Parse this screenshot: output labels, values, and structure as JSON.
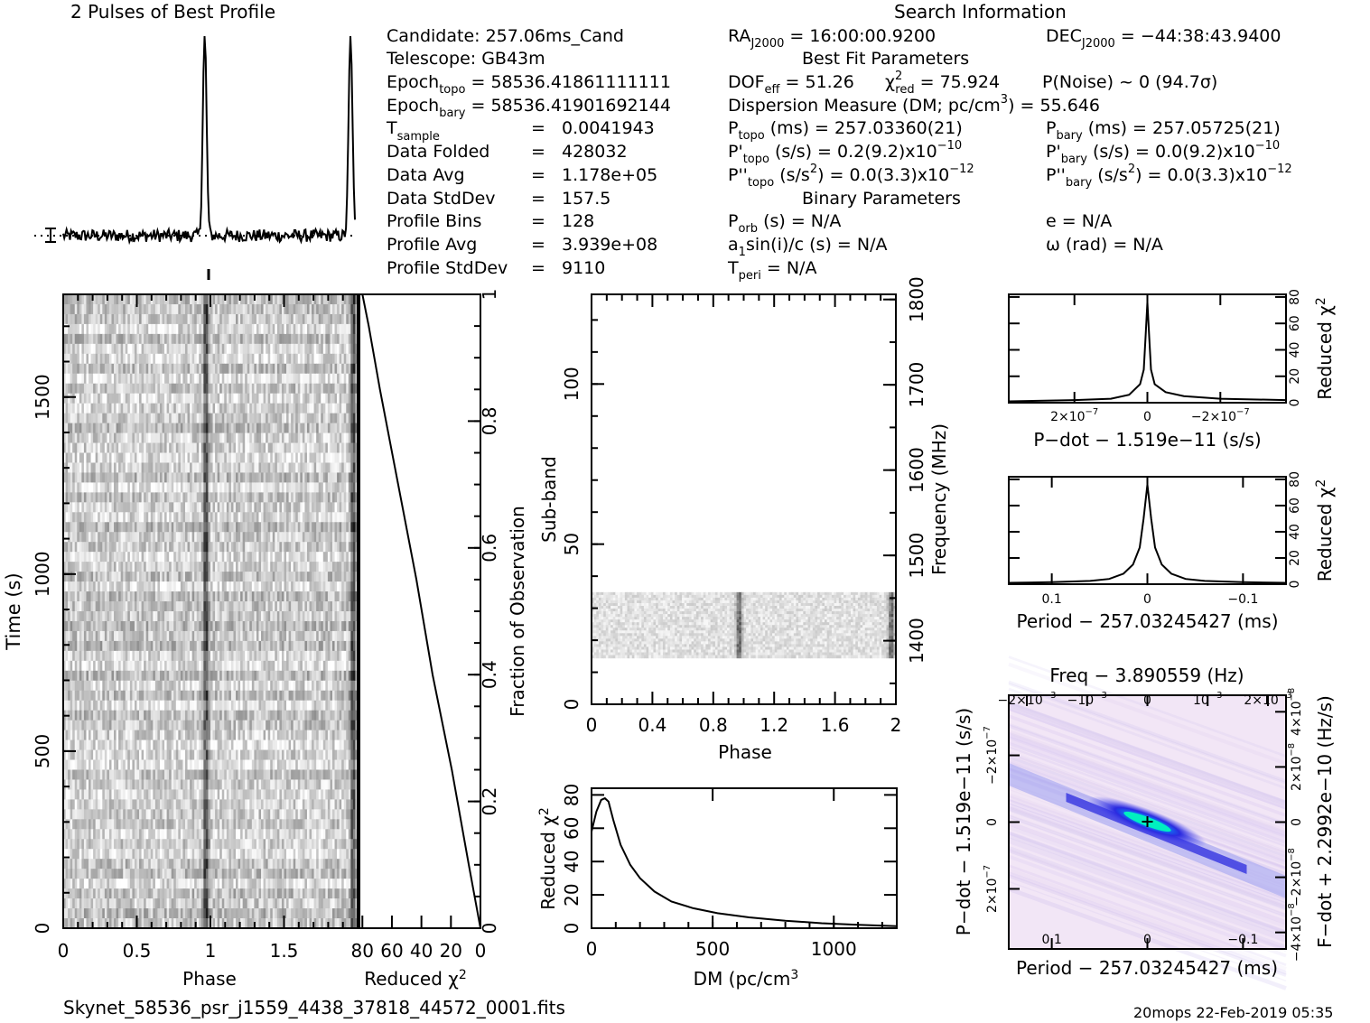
{
  "header": {
    "profile_title": "2 Pulses of Best Profile",
    "search_title": "Search Information",
    "filename": "Skynet_58536_psr_j1559_4438_37818_44572_0001.fits",
    "footer_right": "20mops 22-Feb-2019 05:35"
  },
  "info": {
    "candidate": "Candidate:  257.06ms_Cand",
    "telescope": "Telescope:  GB43m",
    "epoch_topo_lbl": "Epoch",
    "epoch_topo_sub": "topo",
    "epoch_topo_val": " = 58536.41861111111",
    "epoch_bary_lbl": "Epoch",
    "epoch_bary_sub": "bary",
    "epoch_bary_val": " = 58536.41901692144",
    "tsample_lbl": "T",
    "tsample_sub": "sample",
    "tsample_eq": "=",
    "tsample_val": "0.0041943",
    "folded_lbl": "Data Folded",
    "folded_eq": "=",
    "folded_val": "428032",
    "avg_lbl": "Data Avg",
    "avg_eq": "=",
    "avg_val": "1.178e+05",
    "std_lbl": "Data StdDev",
    "std_eq": "=",
    "std_val": "157.5",
    "bins_lbl": "Profile Bins",
    "bins_eq": "=",
    "bins_val": "128",
    "pavg_lbl": "Profile Avg",
    "pavg_eq": "=",
    "pavg_val": "3.939e+08",
    "pstd_lbl": "Profile StdDev",
    "pstd_eq": "=",
    "pstd_val": "9110",
    "ra": "RA",
    "ra_sub": "J2000",
    "ra_val": " = 16:00:00.9200",
    "dec": "DEC",
    "dec_sub": "J2000",
    "dec_val": " = −44:38:43.9400",
    "best_fit": "Best Fit Parameters",
    "dof": "DOF",
    "dof_sub": "eff",
    "dof_val": " = 51.26",
    "chi_lbl": "χ",
    "chi_sup": "2",
    "chi_sub": "red",
    "chi_val": " = 75.924",
    "pnoise": "P(Noise) ~ 0   (94.7σ)",
    "dm_line": "Dispersion Measure (DM; pc/cm",
    "dm_sup": "3",
    "dm_val": ") = 55.646",
    "ptopo": "P",
    "ptopo_sub": "topo",
    "ptopo_val": " (ms) =  257.03360(21)",
    "pbary": "P",
    "pbary_sub": "bary",
    "pbary_val": " (ms) =  257.05725(21)",
    "pdtopo": "P'",
    "pdtopo_sub": "topo",
    "pdtopo_val": " (s/s) =  0.2(9.2)x10",
    "pdtopo_exp": "−10",
    "pdbary": "P'",
    "pdbary_sub": "bary",
    "pdbary_val": " (s/s) = 0.0(9.2)x10",
    "pdbary_exp": "−10",
    "pddtopo": "P''",
    "pddtopo_sub": "topo",
    "pddtopo_val": " (s/s",
    "pddtopo_sup": "2",
    "pddtopo_val2": ") = 0.0(3.3)x10",
    "pddtopo_exp": "−12",
    "pddbary": "P''",
    "pddbary_sub": "bary",
    "pddbary_val": " (s/s",
    "pddbary_sup": "2",
    "pddbary_val2": ") = 0.0(3.3)x10",
    "pddbary_exp": "−12",
    "binary": "Binary Parameters",
    "porb": "P",
    "porb_sub": "orb",
    "porb_val": " (s) = N/A",
    "e_val": "e = N/A",
    "a1_a": "a",
    "a1_sub": "1",
    "a1_val": "sin(i)/c (s) = N/A",
    "omega": "ω (rad) = N/A",
    "tperi": "T",
    "tperi_sub": "peri",
    "tperi_val": " = N/A"
  },
  "chart_data": [
    {
      "type": "line",
      "name": "pulse-profile",
      "title": "2 Pulses of Best Profile",
      "x_range": [
        0,
        2
      ],
      "peaks_phase": [
        0.97,
        1.97
      ],
      "baseline_dotted": true
    },
    {
      "type": "heatmap",
      "name": "time-phase",
      "xlabel": "Phase",
      "ylabel": "Time (s)",
      "x_ticks": [
        "0",
        "0.5",
        "1",
        "1.5"
      ],
      "x_tick_vals": [
        0,
        0.5,
        1,
        1.5
      ],
      "y_ticks": [
        "0",
        "500",
        "1000",
        "1500"
      ],
      "y_tick_vals": [
        0,
        500,
        1000,
        1500
      ],
      "xlim": [
        0,
        2
      ],
      "ylim": [
        0,
        1790
      ],
      "pulse_phase": [
        0.97,
        1.97
      ],
      "colormap": "grayscale"
    },
    {
      "type": "line",
      "name": "time-chi2",
      "xlabel": "Reduced χ",
      "xlabel_sup": "2",
      "ylabel_right": "Fraction of Observation",
      "x_ticks": [
        "80",
        "60",
        "40",
        "20",
        "0"
      ],
      "x_tick_vals": [
        80,
        60,
        40,
        20,
        0
      ],
      "y_ticks": [
        "0",
        "0.2",
        "0.4",
        "0.6",
        "0.8",
        "1"
      ],
      "y_tick_vals": [
        0,
        0.2,
        0.4,
        0.6,
        0.8,
        1
      ],
      "xlim": [
        82,
        0
      ],
      "ylim": [
        0,
        1
      ],
      "x": [
        0,
        8,
        20,
        32,
        44,
        56,
        68,
        76,
        80
      ],
      "y": [
        0,
        0.1,
        0.25,
        0.4,
        0.55,
        0.7,
        0.85,
        0.95,
        1.0
      ]
    },
    {
      "type": "heatmap",
      "name": "subband-phase",
      "xlabel": "Phase",
      "ylabel": "Sub-band",
      "ylabel_right": "Frequency (MHz)",
      "x_ticks": [
        "0",
        "0.4",
        "0.8",
        "1.2",
        "1.6",
        "2"
      ],
      "x_tick_vals": [
        0,
        0.4,
        0.8,
        1.2,
        1.6,
        2
      ],
      "y_ticks": [
        "0",
        "50",
        "100"
      ],
      "y_tick_vals": [
        0,
        50,
        100
      ],
      "freq_ticks": [
        "1400",
        "1500",
        "1600",
        "1700",
        "1800"
      ],
      "freq_tick_vals": [
        1400,
        1500,
        1600,
        1700,
        1800
      ],
      "xlim": [
        0,
        2
      ],
      "ylim": [
        0,
        128
      ],
      "freq_lim": [
        1325.5,
        1806
      ],
      "data_band": [
        14.5,
        35
      ],
      "pulse_phase": [
        0.97,
        1.97
      ],
      "colormap": "grayscale"
    },
    {
      "type": "line",
      "name": "dm-chi2",
      "xlabel": "DM (pc/cm",
      "xlabel_sup": "3",
      "xlabel_end": ")",
      "ylabel": "Reduced χ",
      "ylabel_sup": "2",
      "x_ticks": [
        "0",
        "500",
        "1000"
      ],
      "x_tick_vals": [
        0,
        500,
        1000
      ],
      "y_ticks": [
        "0",
        "20",
        "40",
        "60",
        "80"
      ],
      "y_tick_vals": [
        0,
        20,
        40,
        60,
        80
      ],
      "xlim": [
        0,
        1260
      ],
      "ylim": [
        0,
        84
      ],
      "x": [
        0,
        20,
        40,
        55,
        70,
        90,
        120,
        160,
        200,
        260,
        330,
        420,
        520,
        650,
        800,
        950,
        1100,
        1260
      ],
      "y": [
        58,
        70,
        77,
        78,
        76,
        65,
        50,
        38,
        30,
        22,
        16,
        12,
        9,
        6.5,
        4.5,
        3,
        2,
        1.2
      ]
    },
    {
      "type": "line",
      "name": "pdot-chi2",
      "xlabel": "P−dot − 1.519e−11 (s/s)",
      "ylabel_right": "Reduced χ",
      "ylabel_sup": "2",
      "x_ticks": [
        "2×10",
        "0",
        "−2×10"
      ],
      "x_tick_exp": "−7",
      "x_tick_vals": [
        2e-07,
        0,
        -2e-07
      ],
      "y_ticks": [
        "0",
        "20",
        "40",
        "60",
        "80"
      ],
      "y_tick_vals": [
        0,
        20,
        40,
        60,
        80
      ],
      "xlim": [
        3.8e-07,
        -3.8e-07
      ],
      "ylim": [
        0,
        82
      ],
      "x": [
        3.8e-07,
        2e-07,
        1e-07,
        5e-08,
        2e-08,
        1e-08,
        5e-09,
        0,
        -5e-09,
        -1e-08,
        -2e-08,
        -5e-08,
        -1e-07,
        -2e-07,
        -3.8e-07
      ],
      "y": [
        1,
        2,
        3,
        6,
        14,
        25,
        50,
        76,
        50,
        25,
        14,
        8,
        5,
        3,
        2
      ]
    },
    {
      "type": "line",
      "name": "period-chi2",
      "xlabel": "Period − 257.03245427 (ms)",
      "ylabel_right": "Reduced χ",
      "ylabel_sup": "2",
      "x_ticks": [
        "0.1",
        "0",
        "−0.1"
      ],
      "x_tick_vals": [
        0.1,
        0,
        -0.1
      ],
      "y_ticks": [
        "0",
        "20",
        "40",
        "60",
        "80"
      ],
      "y_tick_vals": [
        0,
        20,
        40,
        60,
        80
      ],
      "xlim": [
        0.145,
        -0.145
      ],
      "ylim": [
        0,
        82
      ],
      "x": [
        0.145,
        0.1,
        0.06,
        0.04,
        0.025,
        0.015,
        0.008,
        0.004,
        0,
        -0.004,
        -0.008,
        -0.015,
        -0.025,
        -0.04,
        -0.06,
        -0.1,
        -0.145
      ],
      "y": [
        1,
        1.5,
        2.5,
        4,
        8,
        15,
        28,
        50,
        76,
        50,
        28,
        15,
        8,
        4,
        2.5,
        1.5,
        1
      ]
    },
    {
      "type": "heatmap",
      "name": "period-pdot",
      "top_title": "Freq − 3.890559 (Hz)",
      "xlabel": "Period − 257.03245427 (ms)",
      "ylabel": "P−dot − 1.519e−11 (s/s)",
      "ylabel_right": "F−dot + 2.2992e−10 (Hz/s)",
      "x_ticks": [
        "0.1",
        "0",
        "−0.1"
      ],
      "x_tick_vals": [
        0.1,
        0,
        -0.1
      ],
      "top_ticks": [
        "−2×10",
        "−10",
        "0",
        "10",
        "2×10"
      ],
      "top_tick_exp": "−3",
      "top_tick_vals": [
        -0.002,
        -0.001,
        0,
        0.001,
        0.002
      ],
      "y_ticks": [
        "−2×10",
        "0",
        "2×10"
      ],
      "y_tick_exp": "−7",
      "y_tick_vals": [
        -2e-07,
        0,
        2e-07
      ],
      "right_ticks": [
        "4×10",
        "2×10",
        "0",
        "−2×10",
        "−4×10"
      ],
      "right_tick_exp": "−8",
      "right_tick_vals": [
        4e-08,
        2e-08,
        0,
        -2e-08,
        -4e-08
      ],
      "xlim": [
        0.145,
        -0.145
      ],
      "ylim": [
        -3.8e-07,
        3.8e-07
      ],
      "colormap": "white-blue-cyan"
    }
  ]
}
